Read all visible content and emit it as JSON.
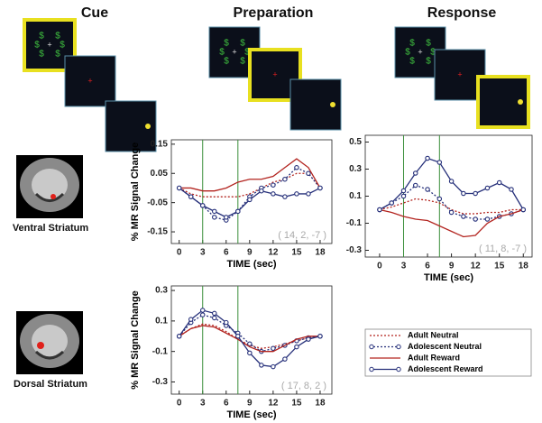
{
  "panels": [
    "Cue",
    "Preparation",
    "Response"
  ],
  "stimulus": {
    "dollar": "$",
    "fixation": "+"
  },
  "regions": [
    "Ventral Striatum",
    "Dorsal Striatum"
  ],
  "chart_data": [
    {
      "type": "line",
      "ylabel": "% MR Signal Change",
      "xlabel": "TIME (sec)",
      "annotation": "( 14, 2, -7 )",
      "x": [
        0,
        1.5,
        3,
        4.5,
        6,
        7.5,
        9,
        10.5,
        12,
        13.5,
        15,
        16.5,
        18
      ],
      "xlim": [
        -1,
        19.5
      ],
      "xticks": [
        0,
        3,
        6,
        9,
        12,
        15,
        18
      ],
      "ylim": [
        -0.19,
        0.165
      ],
      "yticks": [
        -0.15,
        -0.05,
        0.05,
        0.15
      ],
      "event_lines": [
        3,
        7.5
      ],
      "event_line_color": "#3a8f3a",
      "series": [
        {
          "color": "#b3241f",
          "style": "dotted",
          "marker": "none",
          "values": [
            0,
            -0.02,
            -0.03,
            -0.03,
            -0.03,
            -0.03,
            -0.02,
            0.0,
            0.02,
            0.03,
            0.05,
            0.05,
            0.0
          ]
        },
        {
          "color": "#26307a",
          "style": "dotted",
          "marker": "circle",
          "values": [
            0,
            -0.03,
            -0.06,
            -0.1,
            -0.11,
            -0.08,
            -0.03,
            0.0,
            0.01,
            0.03,
            0.07,
            0.05,
            0.0
          ]
        },
        {
          "color": "#b3241f",
          "style": "solid",
          "marker": "none",
          "values": [
            0,
            0.0,
            -0.01,
            -0.01,
            0.0,
            0.02,
            0.03,
            0.03,
            0.04,
            0.07,
            0.1,
            0.07,
            0.0
          ]
        },
        {
          "color": "#26307a",
          "style": "solid",
          "marker": "circle",
          "values": [
            0,
            -0.03,
            -0.06,
            -0.08,
            -0.1,
            -0.08,
            -0.04,
            -0.01,
            -0.02,
            -0.03,
            -0.02,
            -0.02,
            0.0
          ]
        }
      ]
    },
    {
      "type": "line",
      "xlabel": "TIME (sec)",
      "annotation": "( 11, 8, -7 )",
      "x": [
        0,
        1.5,
        3,
        4.5,
        6,
        7.5,
        9,
        10.5,
        12,
        13.5,
        15,
        16.5,
        18
      ],
      "xlim": [
        -1.8,
        19.1
      ],
      "xticks": [
        0,
        3,
        6,
        9,
        12,
        15,
        18
      ],
      "ylim": [
        -0.35,
        0.55
      ],
      "yticks": [
        -0.3,
        -0.1,
        0.1,
        0.3,
        0.5
      ],
      "event_lines": [
        3,
        7.5
      ],
      "event_line_color": "#3a8f3a",
      "series": [
        {
          "color": "#b3241f",
          "style": "dotted",
          "marker": "none",
          "values": [
            0,
            0.02,
            0.05,
            0.08,
            0.07,
            0.05,
            0.0,
            -0.03,
            -0.03,
            -0.02,
            -0.02,
            0.0,
            0.0
          ]
        },
        {
          "color": "#26307a",
          "style": "dotted",
          "marker": "circle",
          "values": [
            0,
            0.05,
            0.1,
            0.18,
            0.15,
            0.08,
            -0.02,
            -0.05,
            -0.07,
            -0.07,
            -0.05,
            -0.03,
            0.0
          ]
        },
        {
          "color": "#b3241f",
          "style": "solid",
          "marker": "none",
          "values": [
            0,
            -0.02,
            -0.05,
            -0.07,
            -0.08,
            -0.12,
            -0.16,
            -0.2,
            -0.19,
            -0.1,
            -0.05,
            -0.03,
            0.0
          ]
        },
        {
          "color": "#26307a",
          "style": "solid",
          "marker": "circle",
          "values": [
            0,
            0.05,
            0.14,
            0.27,
            0.38,
            0.35,
            0.21,
            0.12,
            0.12,
            0.16,
            0.2,
            0.15,
            0.0
          ]
        }
      ]
    },
    {
      "type": "line",
      "ylabel": "% MR Signal Change",
      "xlabel": "TIME (sec)",
      "annotation": "( 17, 8, 2 )",
      "x": [
        0,
        1.5,
        3,
        4.5,
        6,
        7.5,
        9,
        10.5,
        12,
        13.5,
        15,
        16.5,
        18
      ],
      "xlim": [
        -1,
        19.5
      ],
      "xticks": [
        0,
        3,
        6,
        9,
        12,
        15,
        18
      ],
      "ylim": [
        -0.38,
        0.33
      ],
      "yticks": [
        -0.3,
        -0.1,
        0.1,
        0.3
      ],
      "event_lines": [
        3,
        7.5
      ],
      "event_line_color": "#3a8f3a",
      "series": [
        {
          "name": "Adult Neutral",
          "color": "#b3241f",
          "style": "dotted",
          "marker": "none",
          "values": [
            0,
            0.05,
            0.08,
            0.07,
            0.03,
            -0.02,
            -0.06,
            -0.08,
            -0.07,
            -0.05,
            -0.03,
            -0.01,
            0.0
          ]
        },
        {
          "name": "Adolescent Neutral",
          "color": "#26307a",
          "style": "dotted",
          "marker": "circle",
          "values": [
            0,
            0.09,
            0.14,
            0.12,
            0.07,
            0.02,
            -0.05,
            -0.1,
            -0.08,
            -0.06,
            -0.03,
            -0.01,
            0.0
          ]
        },
        {
          "name": "Adult Reward",
          "color": "#b3241f",
          "style": "solid",
          "marker": "none",
          "values": [
            0,
            0.05,
            0.07,
            0.06,
            0.02,
            -0.02,
            -0.07,
            -0.1,
            -0.1,
            -0.06,
            -0.02,
            0.0,
            0.0
          ]
        },
        {
          "name": "Adolescent Reward",
          "color": "#26307a",
          "style": "solid",
          "marker": "circle",
          "values": [
            0,
            0.11,
            0.17,
            0.15,
            0.09,
            0.0,
            -0.11,
            -0.19,
            -0.2,
            -0.15,
            -0.07,
            -0.02,
            0.0
          ]
        }
      ]
    }
  ]
}
